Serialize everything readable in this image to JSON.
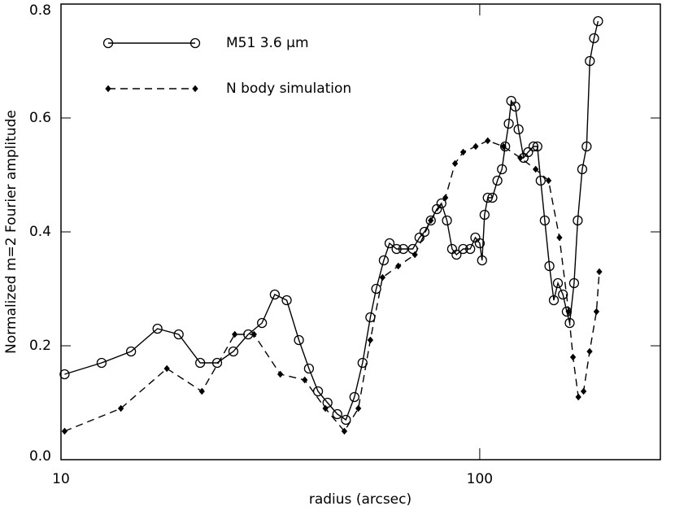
{
  "chart_data": {
    "type": "line",
    "xlabel": "radius (arcsec)",
    "ylabel": "Normalized m=2 Fourier amplitude",
    "xscale": "log",
    "xlim": [
      10,
      270
    ],
    "xticks": [
      10,
      100
    ],
    "ylim": [
      0,
      0.8
    ],
    "yticks": [
      {
        "value": 0,
        "label": "0.0"
      },
      0.2,
      0.4,
      0.6,
      0.8
    ],
    "legend": "upper left",
    "series": [
      {
        "name": "M51  3.6 μm",
        "color": "#000000",
        "linestyle": "solid",
        "marker": "circle",
        "x": [
          10.2,
          12.5,
          14.7,
          17.0,
          19.1,
          21.5,
          23.6,
          25.8,
          28.0,
          30.2,
          32.4,
          34.6,
          37.0,
          39.1,
          41.1,
          43.3,
          45.7,
          47.9,
          50.2,
          52.5,
          54.8,
          56.6,
          59.0,
          60.9,
          63.3,
          65.7,
          69.2,
          71.8,
          73.8,
          76.4,
          79.0,
          81.0,
          83.5,
          85.9,
          88.0,
          91.3,
          94.9,
          97.6,
          100,
          101.3,
          102.7,
          104.5,
          107.2,
          110.2,
          113.0,
          115.0,
          117.3,
          118.9,
          121.6,
          123.8,
          127.3,
          130.5,
          134.4,
          137.3,
          139.8,
          143.0,
          146.7,
          150.3,
          153.7,
          158.0,
          161.4,
          164.0,
          168.0,
          171.4,
          175.7,
          180.0,
          183.2,
          187.5,
          191.7
        ],
        "values": [
          0.15,
          0.17,
          0.19,
          0.23,
          0.22,
          0.17,
          0.17,
          0.19,
          0.22,
          0.24,
          0.29,
          0.28,
          0.21,
          0.16,
          0.12,
          0.1,
          0.08,
          0.07,
          0.11,
          0.17,
          0.25,
          0.3,
          0.35,
          0.38,
          0.37,
          0.37,
          0.37,
          0.39,
          0.4,
          0.42,
          0.44,
          0.45,
          0.42,
          0.37,
          0.36,
          0.37,
          0.37,
          0.39,
          0.38,
          0.35,
          0.43,
          0.46,
          0.46,
          0.49,
          0.51,
          0.55,
          0.59,
          0.63,
          0.62,
          0.58,
          0.53,
          0.54,
          0.55,
          0.55,
          0.49,
          0.42,
          0.34,
          0.28,
          0.31,
          0.29,
          0.26,
          0.24,
          0.31,
          0.42,
          0.51,
          0.55,
          0.7,
          0.74,
          0.77
        ]
      },
      {
        "name": "N body simulation",
        "color": "#000000",
        "linestyle": "dashed",
        "marker": "diamond",
        "x": [
          10.2,
          13.9,
          17.9,
          21.7,
          26.0,
          28.9,
          33.4,
          38.2,
          42.8,
          47.5,
          51.3,
          54.8,
          58.6,
          63.9,
          70.0,
          76.4,
          82.8,
          87.3,
          91.3,
          97.8,
          104.5,
          114.0,
          125.0,
          136.0,
          146.0,
          155.0,
          163.0,
          167.0,
          172.0,
          177.0,
          183.0,
          190.0,
          193.0
        ],
        "values": [
          0.05,
          0.09,
          0.16,
          0.12,
          0.22,
          0.22,
          0.15,
          0.14,
          0.09,
          0.05,
          0.09,
          0.21,
          0.32,
          0.34,
          0.36,
          0.42,
          0.46,
          0.52,
          0.54,
          0.55,
          0.56,
          0.55,
          0.53,
          0.51,
          0.49,
          0.39,
          0.26,
          0.18,
          0.11,
          0.12,
          0.19,
          0.26,
          0.33
        ]
      }
    ]
  }
}
